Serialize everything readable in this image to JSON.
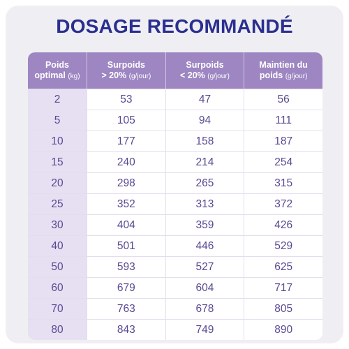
{
  "title": "DOSAGE RECOMMANDÉ",
  "colors": {
    "title": "#2a2f8f",
    "header_bg": "#9d86c2",
    "first_col_bg": "#e6e0f2",
    "text": "#5a4893"
  },
  "table": {
    "headers": [
      {
        "line1": "Poids",
        "line2": "optimal",
        "unit": "(kg)"
      },
      {
        "line1": "Surpoids",
        "line2": "> 20%",
        "unit": "(g/jour)"
      },
      {
        "line1": "Surpoids",
        "line2": "< 20%",
        "unit": "(g/jour)"
      },
      {
        "line1": "Maintien du",
        "line2": "poids",
        "unit": "(g/jour)"
      }
    ],
    "rows": [
      [
        "2",
        "53",
        "47",
        "56"
      ],
      [
        "5",
        "105",
        "94",
        "111"
      ],
      [
        "10",
        "177",
        "158",
        "187"
      ],
      [
        "15",
        "240",
        "214",
        "254"
      ],
      [
        "20",
        "298",
        "265",
        "315"
      ],
      [
        "25",
        "352",
        "313",
        "372"
      ],
      [
        "30",
        "404",
        "359",
        "426"
      ],
      [
        "40",
        "501",
        "446",
        "529"
      ],
      [
        "50",
        "593",
        "527",
        "625"
      ],
      [
        "60",
        "679",
        "604",
        "717"
      ],
      [
        "70",
        "763",
        "678",
        "805"
      ],
      [
        "80",
        "843",
        "749",
        "890"
      ]
    ]
  }
}
